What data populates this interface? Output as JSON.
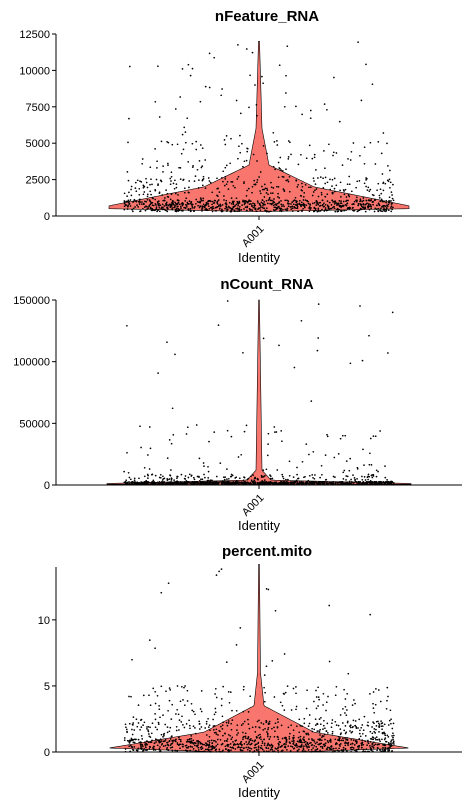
{
  "chart_data": [
    {
      "type": "violin",
      "title": "nFeature_RNA",
      "xlabel": "Identity",
      "ylabel": "",
      "categories": [
        "A001"
      ],
      "ylim": [
        0,
        12500
      ],
      "yticks": [
        0,
        2500,
        5000,
        7500,
        10000,
        12500
      ],
      "ytick_labels": [
        "0",
        "2500",
        "5000",
        "7500",
        "10000",
        "12500"
      ],
      "fill_color": "#f8766d",
      "legend": "none",
      "grid": false,
      "summary": {
        "min": 300,
        "median": 900,
        "max": 12000
      }
    },
    {
      "type": "violin",
      "title": "nCount_RNA",
      "xlabel": "Identity",
      "ylabel": "",
      "categories": [
        "A001"
      ],
      "ylim": [
        0,
        150000
      ],
      "yticks": [
        0,
        50000,
        100000,
        150000
      ],
      "ytick_labels": [
        "0",
        "50000",
        "100000",
        "150000"
      ],
      "fill_color": "#f8766d",
      "legend": "none",
      "grid": false,
      "summary": {
        "min": 200,
        "median": 1500,
        "max": 150000
      }
    },
    {
      "type": "violin",
      "title": "percent.mito",
      "xlabel": "Identity",
      "ylabel": "",
      "categories": [
        "A001"
      ],
      "ylim": [
        0,
        14
      ],
      "yticks": [
        0,
        5,
        10
      ],
      "ytick_labels": [
        "0",
        "5",
        "10"
      ],
      "fill_color": "#f8766d",
      "legend": "none",
      "grid": false,
      "summary": {
        "min": 0,
        "median": 0.8,
        "max": 14.2
      }
    }
  ]
}
